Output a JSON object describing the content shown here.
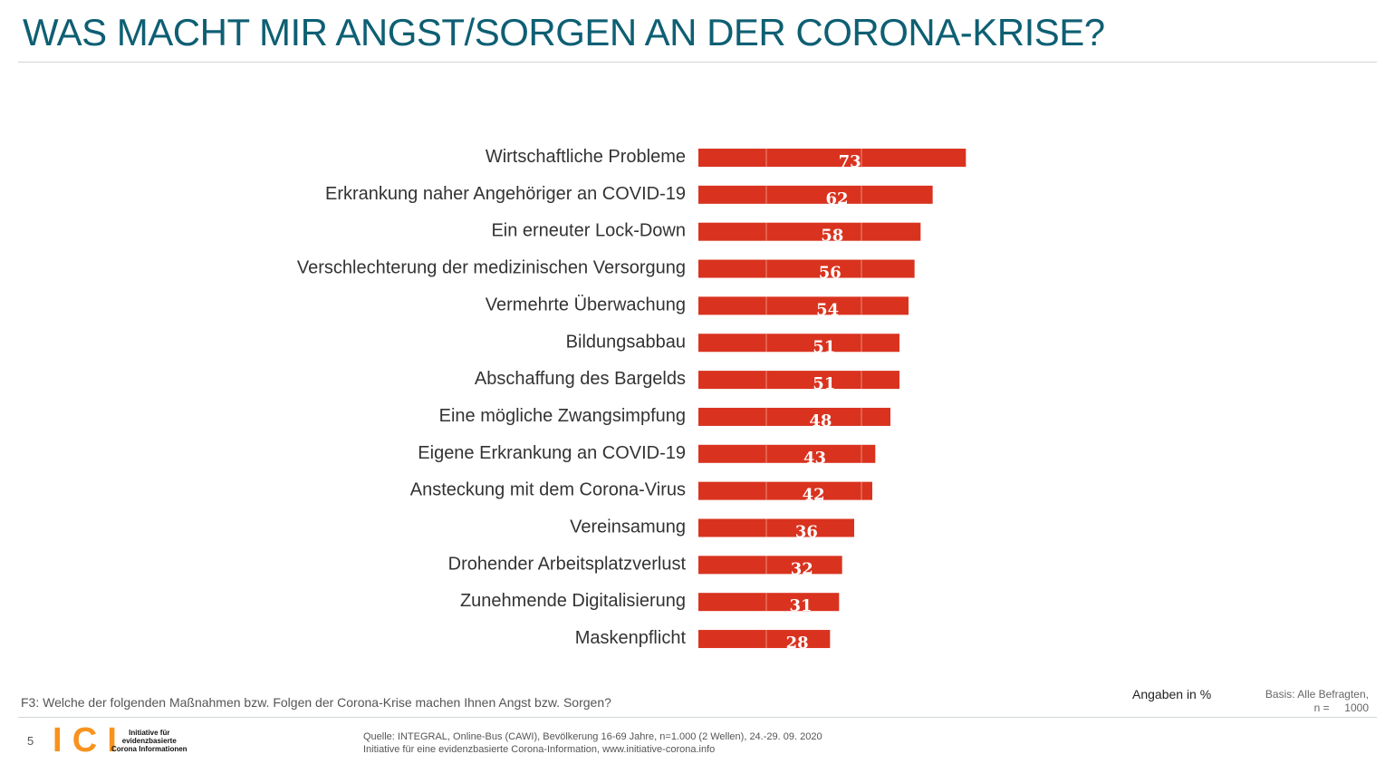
{
  "title": "WAS MACHT MIR ANGST/SORGEN AN DER CORONA-KRISE?",
  "question": "F3: Welche der folgenden Maßnahmen bzw. Folgen der Corona-Krise machen Ihnen Angst bzw. Sorgen?",
  "unit_note": "Angaben in %",
  "basis": {
    "line1": "Basis: Alle Befragten,",
    "line2": "n =     1000"
  },
  "page_number": "5",
  "logo": {
    "letters": "ICI",
    "line1": "Initiative für",
    "line2": "evidenzbasierte",
    "line3": "Corona Informationen"
  },
  "source": {
    "line1": "Quelle: INTEGRAL, Online-Bus (CAWI), Bevölkerung 16-69 Jahre, n=1.000 (2 Wellen), 24.-29. 09. 2020",
    "line2": "Initiative für eine evidenzbasierte Corona-Information, www.initiative-corona.info"
  },
  "colors": {
    "bar": "#d9331f",
    "title": "#0e5f73"
  },
  "chart_data": {
    "type": "bar",
    "orientation": "horizontal",
    "categories": [
      "Wirtschaftliche Probleme",
      "Erkrankung naher Angehöriger an COVID-19",
      "Ein erneuter Lock-Down",
      "Verschlechterung der medizinischen Versorgung",
      "Vermehrte Überwachung",
      "Bildungsabbau",
      "Abschaffung des Bargelds",
      "Eine mögliche Zwangsimpfung",
      "Eigene Erkrankung an COVID-19",
      "Ansteckung mit dem Corona-Virus",
      "Vereinsamung",
      "Drohender Arbeitsplatzverlust",
      "Zunehmende Digitalisierung",
      "Maskenpflicht"
    ],
    "values": [
      73,
      62,
      58,
      56,
      54,
      51,
      51,
      48,
      43,
      42,
      36,
      32,
      31,
      28
    ],
    "data_labels": true,
    "grid": false
  }
}
